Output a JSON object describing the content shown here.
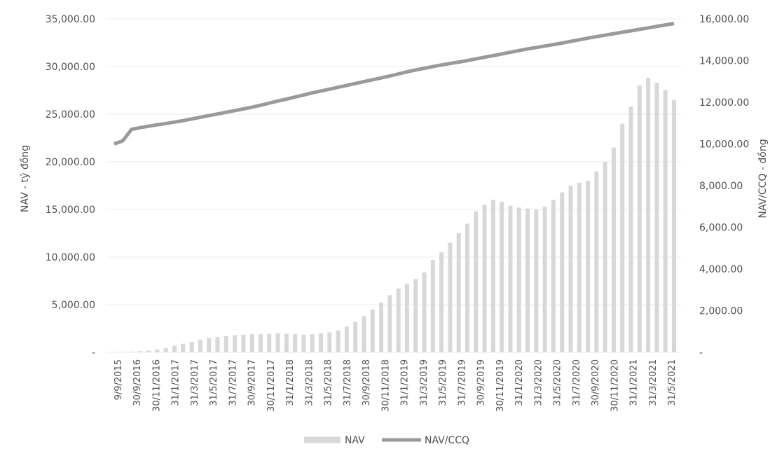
{
  "chart_data": {
    "type": "bar+line",
    "title": "",
    "ylabel_left": "NAV - tỷ đồng",
    "ylabel_right": "NAV/CCQ - đồng",
    "ylim_left": [
      0,
      35000
    ],
    "ylim_right": [
      0,
      16000
    ],
    "left_ticks": [
      "-",
      "5,000.00",
      "10,000.00",
      "15,000.00",
      "20,000.00",
      "25,000.00",
      "30,000.00",
      "35,000.00"
    ],
    "right_ticks": [
      "-",
      "2,000.00",
      "4,000.00",
      "6,000.00",
      "8,000.00",
      "10,000.00",
      "12,000.00",
      "14,000.00",
      "16,000.00"
    ],
    "grid": true,
    "legend_position": "bottom",
    "x_tick_labels": [
      "9/9/2015",
      "30/9/2016",
      "30/11/2016",
      "31/1/2017",
      "31/3/2017",
      "31/5/2017",
      "31/7/2017",
      "30/9/2017",
      "30/11/2017",
      "31/1/2018",
      "31/3/2018",
      "31/5/2018",
      "31/7/2018",
      "30/9/2018",
      "30/11/2018",
      "31/1/2019",
      "31/3/2019",
      "31/5/2019",
      "31/7/2019",
      "30/9/2019",
      "30/11/2019",
      "31/1/2020",
      "31/3/2020",
      "31/5/2020",
      "31/7/2020",
      "30/9/2020",
      "30/11/2020",
      "31/1/2021",
      "31/3/2021",
      "31/5/2021"
    ],
    "series": [
      {
        "name": "NAV",
        "type": "bar",
        "axis": "left",
        "color": "#d8d8d8",
        "values": [
          30,
          50,
          80,
          120,
          180,
          300,
          450,
          700,
          900,
          1100,
          1300,
          1500,
          1600,
          1700,
          1800,
          1850,
          1900,
          1900,
          1950,
          2000,
          1950,
          1900,
          1850,
          1900,
          2000,
          2100,
          2300,
          2700,
          3200,
          3800,
          4500,
          5200,
          6000,
          6700,
          7200,
          7700,
          8400,
          9700,
          10500,
          11500,
          12500,
          13500,
          14800,
          15500,
          16000,
          15800,
          15400,
          15200,
          15100,
          15000,
          15300,
          16000,
          16800,
          17500,
          17800,
          18000,
          19000,
          20000,
          21500,
          24000,
          25800,
          28000,
          28800,
          28300,
          27500,
          26500
        ]
      },
      {
        "name": "NAV/CCQ",
        "type": "line",
        "axis": "right",
        "color": "#9a9a9a",
        "values": [
          10000,
          10150,
          10700,
          10780,
          10850,
          10920,
          10980,
          11050,
          11120,
          11200,
          11280,
          11360,
          11440,
          11520,
          11600,
          11680,
          11760,
          11860,
          11960,
          12060,
          12150,
          12250,
          12350,
          12450,
          12540,
          12630,
          12720,
          12810,
          12900,
          12990,
          13080,
          13170,
          13260,
          13360,
          13460,
          13550,
          13630,
          13710,
          13790,
          13860,
          13930,
          14000,
          14080,
          14160,
          14240,
          14320,
          14400,
          14480,
          14560,
          14630,
          14700,
          14770,
          14840,
          14920,
          15000,
          15080,
          15150,
          15220,
          15290,
          15360,
          15430,
          15500,
          15570,
          15640,
          15710,
          15780
        ]
      }
    ]
  }
}
